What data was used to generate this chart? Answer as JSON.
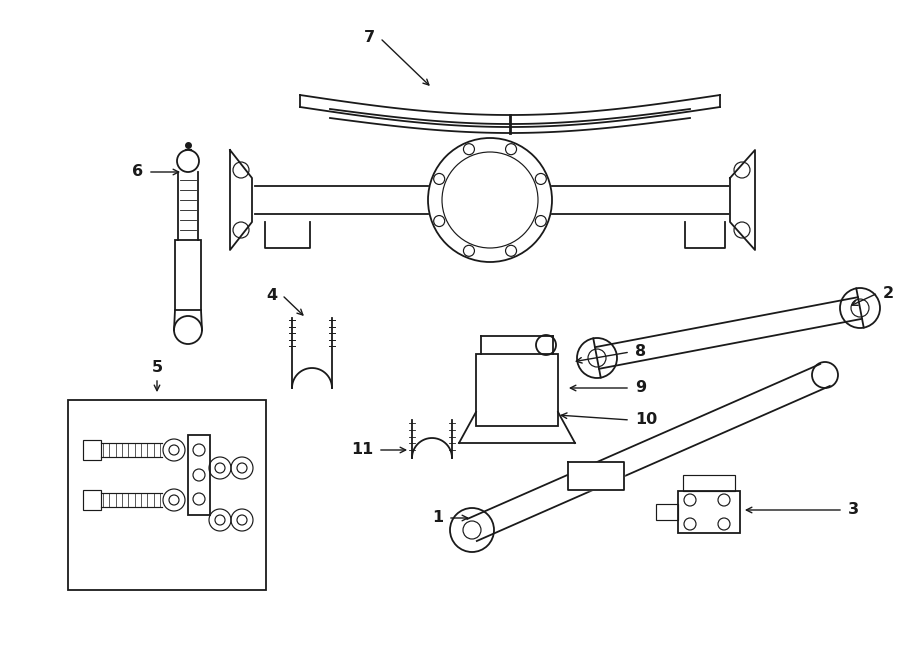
{
  "bg_color": "#ffffff",
  "line_color": "#1a1a1a",
  "fig_width": 9.0,
  "fig_height": 6.61,
  "dpi": 100,
  "label_fontsize": 11.5,
  "lw_main": 1.3,
  "lw_detail": 0.85
}
